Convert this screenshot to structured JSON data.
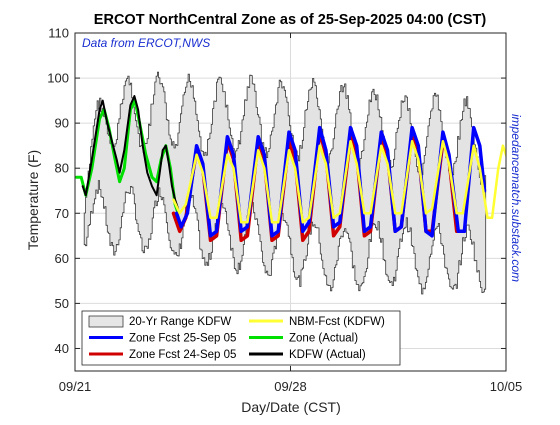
{
  "chart_data": {
    "type": "line",
    "title": "ERCOT NorthCentral Zone as of 25-Sep-2025 04:00 (CST)",
    "xlabel": "Day/Date (CST)",
    "ylabel": "Temperature (F)",
    "ylim": [
      35,
      110
    ],
    "yticks": [
      40,
      50,
      60,
      70,
      80,
      90,
      100,
      110
    ],
    "xlim": [
      0,
      14
    ],
    "xticks": [
      {
        "value": 0,
        "label": "09/21"
      },
      {
        "value": 7,
        "label": "09/28"
      },
      {
        "value": 14,
        "label": "10/05"
      }
    ],
    "grid": true,
    "annotation": "Data from ERCOT,NWS",
    "side_text": "impedancematch.substack.com",
    "legend": {
      "placement": "bottom-left",
      "entries": [
        {
          "label": "20-Yr Range KDFW",
          "color": "#e6e6e6",
          "kind": "patch"
        },
        {
          "label": "NBM-Fcst (KDFW)",
          "color": "#ffff33",
          "kind": "line"
        },
        {
          "label": "Zone Fcst 25-Sep 05",
          "color": "#0000ff",
          "kind": "line"
        },
        {
          "label": "Zone (Actual)",
          "color": "#00e000",
          "kind": "line"
        },
        {
          "label": "Zone Fcst 24-Sep 05",
          "color": "#d00000",
          "kind": "line"
        },
        {
          "label": "KDFW (Actual)",
          "color": "#000000",
          "kind": "line"
        }
      ]
    },
    "range_days": [
      {
        "day": 0.3,
        "low": 61,
        "high": 86
      },
      {
        "day": 1,
        "low": 60,
        "high": 102
      },
      {
        "day": 2,
        "low": 60,
        "high": 101
      },
      {
        "day": 3,
        "low": 59,
        "high": 102
      },
      {
        "day": 4,
        "low": 57,
        "high": 101
      },
      {
        "day": 5,
        "low": 57,
        "high": 101
      },
      {
        "day": 6,
        "low": 55,
        "high": 101
      },
      {
        "day": 7,
        "low": 54,
        "high": 100
      },
      {
        "day": 8,
        "low": 52,
        "high": 100
      },
      {
        "day": 9,
        "low": 51,
        "high": 99
      },
      {
        "day": 10,
        "low": 53,
        "high": 98
      },
      {
        "day": 11,
        "low": 52,
        "high": 97
      },
      {
        "day": 12,
        "low": 51,
        "high": 97
      },
      {
        "day": 13,
        "low": 51,
        "high": 96
      },
      {
        "day": 13.25,
        "low": 52,
        "high": 94
      }
    ],
    "series": [
      {
        "name": "Zone (Actual)",
        "color": "#00e000",
        "width": 3,
        "points": [
          [
            0.05,
            78
          ],
          [
            0.2,
            78
          ],
          [
            0.35,
            74
          ],
          [
            0.55,
            80
          ],
          [
            0.8,
            91
          ],
          [
            0.95,
            93
          ],
          [
            1.1,
            89
          ],
          [
            1.3,
            82
          ],
          [
            1.45,
            77
          ],
          [
            1.6,
            80
          ],
          [
            1.8,
            93
          ],
          [
            1.95,
            95
          ],
          [
            2.1,
            90
          ],
          [
            2.3,
            83
          ],
          [
            2.5,
            78
          ],
          [
            2.65,
            77
          ],
          [
            2.8,
            82
          ],
          [
            2.95,
            85
          ],
          [
            3.1,
            80
          ],
          [
            3.25,
            72
          ],
          [
            3.35,
            70
          ]
        ]
      },
      {
        "name": "KDFW (Actual)",
        "color": "#000000",
        "width": 2,
        "points": [
          [
            0.25,
            76
          ],
          [
            0.35,
            74
          ],
          [
            0.55,
            82
          ],
          [
            0.8,
            93
          ],
          [
            0.9,
            95
          ],
          [
            1.05,
            90
          ],
          [
            1.2,
            86
          ],
          [
            1.35,
            82
          ],
          [
            1.45,
            79
          ],
          [
            1.6,
            84
          ],
          [
            1.8,
            94
          ],
          [
            1.93,
            96
          ],
          [
            2.05,
            93
          ],
          [
            2.2,
            85
          ],
          [
            2.35,
            79
          ],
          [
            2.5,
            76
          ],
          [
            2.65,
            74
          ],
          [
            2.75,
            79
          ],
          [
            2.85,
            84
          ],
          [
            2.95,
            85
          ],
          [
            3.05,
            81
          ],
          [
            3.15,
            76
          ],
          [
            3.25,
            73
          ],
          [
            3.35,
            71
          ]
        ]
      },
      {
        "name": "Zone Fcst 24-Sep 05",
        "color": "#d00000",
        "width": 3.5,
        "points": [
          [
            3.2,
            70
          ],
          [
            3.4,
            66
          ],
          [
            3.6,
            69
          ],
          [
            3.95,
            84
          ],
          [
            4.15,
            80
          ],
          [
            4.4,
            64
          ],
          [
            4.6,
            65
          ],
          [
            4.95,
            86
          ],
          [
            5.15,
            82
          ],
          [
            5.4,
            64
          ],
          [
            5.6,
            65
          ],
          [
            5.95,
            86
          ],
          [
            6.15,
            82
          ],
          [
            6.4,
            64
          ],
          [
            6.6,
            65
          ],
          [
            6.95,
            86
          ],
          [
            7.15,
            82
          ],
          [
            7.4,
            64
          ],
          [
            7.6,
            66
          ],
          [
            7.95,
            88
          ],
          [
            8.15,
            83
          ],
          [
            8.4,
            65
          ],
          [
            8.6,
            67
          ],
          [
            8.95,
            87
          ],
          [
            9.15,
            83
          ],
          [
            9.4,
            65
          ],
          [
            9.6,
            66
          ],
          [
            9.95,
            87
          ],
          [
            10.15,
            83
          ],
          [
            10.4,
            66
          ],
          [
            10.6,
            67
          ],
          [
            10.95,
            88
          ],
          [
            11.15,
            84
          ],
          [
            11.4,
            66
          ],
          [
            11.6,
            66
          ],
          [
            11.95,
            86
          ],
          [
            12.15,
            82
          ],
          [
            12.4,
            66
          ]
        ]
      },
      {
        "name": "Zone Fcst 25-Sep 05",
        "color": "#0000ff",
        "width": 3.5,
        "points": [
          [
            3.3,
            70
          ],
          [
            3.45,
            67
          ],
          [
            3.65,
            70
          ],
          [
            3.95,
            85
          ],
          [
            4.15,
            81
          ],
          [
            4.4,
            65
          ],
          [
            4.6,
            66
          ],
          [
            4.95,
            87
          ],
          [
            5.15,
            83
          ],
          [
            5.4,
            66
          ],
          [
            5.6,
            67
          ],
          [
            5.95,
            87
          ],
          [
            6.15,
            83
          ],
          [
            6.4,
            65
          ],
          [
            6.6,
            66
          ],
          [
            6.95,
            88
          ],
          [
            7.15,
            84
          ],
          [
            7.4,
            66
          ],
          [
            7.6,
            68
          ],
          [
            7.95,
            89
          ],
          [
            8.15,
            84
          ],
          [
            8.4,
            67
          ],
          [
            8.6,
            68
          ],
          [
            8.95,
            89
          ],
          [
            9.15,
            85
          ],
          [
            9.4,
            66
          ],
          [
            9.6,
            67
          ],
          [
            9.95,
            88
          ],
          [
            10.15,
            84
          ],
          [
            10.4,
            66
          ],
          [
            10.6,
            67
          ],
          [
            10.95,
            89
          ],
          [
            11.15,
            85
          ],
          [
            11.4,
            66
          ],
          [
            11.6,
            65
          ],
          [
            11.95,
            88
          ],
          [
            12.15,
            83
          ],
          [
            12.45,
            66
          ],
          [
            12.65,
            66
          ],
          [
            12.95,
            89
          ],
          [
            13.15,
            85
          ],
          [
            13.3,
            75
          ]
        ]
      },
      {
        "name": "NBM-Fcst (KDFW)",
        "color": "#ffff33",
        "width": 2.5,
        "points": [
          [
            3.2,
            73
          ],
          [
            3.4,
            70
          ],
          [
            3.6,
            72
          ],
          [
            3.95,
            83
          ],
          [
            4.15,
            79
          ],
          [
            4.4,
            69
          ],
          [
            4.6,
            69
          ],
          [
            4.95,
            83
          ],
          [
            5.15,
            80
          ],
          [
            5.4,
            68
          ],
          [
            5.6,
            68
          ],
          [
            5.95,
            84
          ],
          [
            6.15,
            80
          ],
          [
            6.4,
            68
          ],
          [
            6.6,
            68
          ],
          [
            6.95,
            84
          ],
          [
            7.15,
            80
          ],
          [
            7.4,
            68
          ],
          [
            7.6,
            69
          ],
          [
            7.95,
            85
          ],
          [
            8.15,
            81
          ],
          [
            8.4,
            69
          ],
          [
            8.6,
            70
          ],
          [
            8.95,
            86
          ],
          [
            9.15,
            81
          ],
          [
            9.4,
            70
          ],
          [
            9.6,
            70
          ],
          [
            9.95,
            85
          ],
          [
            10.15,
            81
          ],
          [
            10.4,
            70
          ],
          [
            10.6,
            70
          ],
          [
            10.95,
            86
          ],
          [
            11.15,
            82
          ],
          [
            11.4,
            70
          ],
          [
            11.6,
            71
          ],
          [
            11.95,
            86
          ],
          [
            12.15,
            81
          ],
          [
            12.4,
            70
          ],
          [
            12.6,
            70
          ],
          [
            12.95,
            85
          ],
          [
            13.15,
            80
          ],
          [
            13.4,
            69
          ],
          [
            13.55,
            69
          ],
          [
            13.75,
            80
          ],
          [
            13.9,
            85
          ],
          [
            14.05,
            82
          ],
          [
            14.25,
            73
          ],
          [
            14.4,
            69
          ],
          [
            14.55,
            73
          ],
          [
            14.75,
            85
          ],
          [
            14.95,
            88
          ]
        ]
      }
    ]
  }
}
